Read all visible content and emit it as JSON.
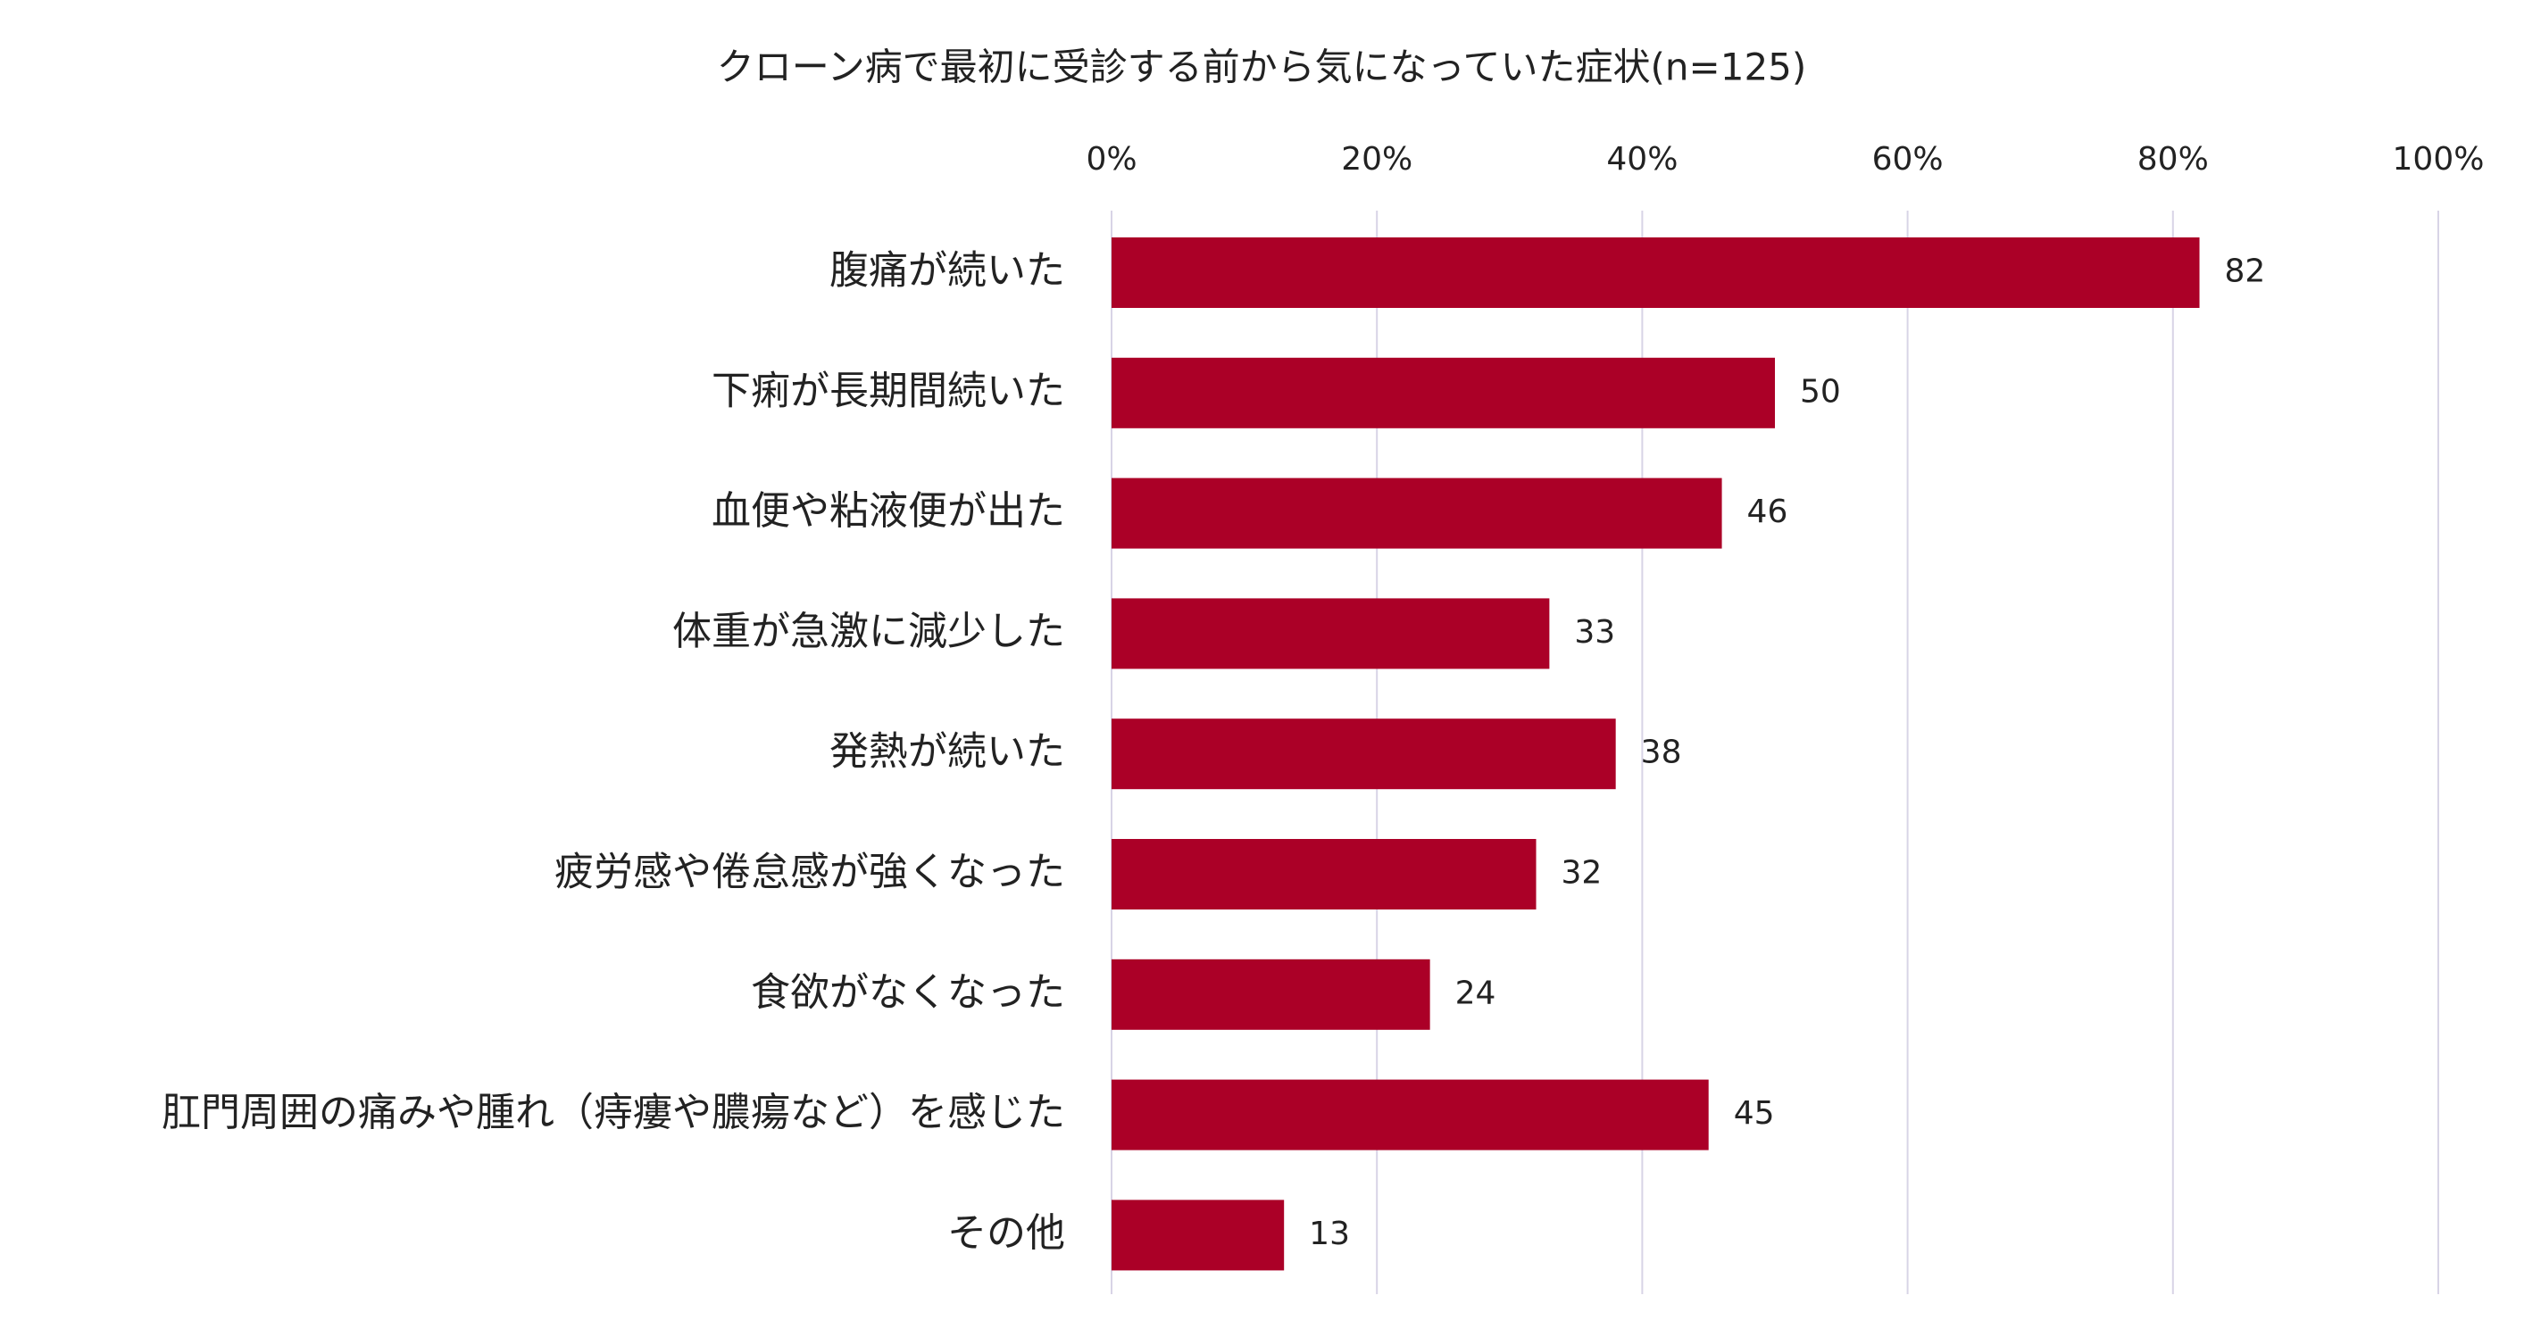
{
  "chart_data": {
    "type": "bar",
    "orientation": "horizontal",
    "title": "クローン病で最初に受診する前から気になっていた症状(n=125)",
    "categories": [
      "腹痛が続いた",
      "下痢が長期間続いた",
      "血便や粘液便が出た",
      "体重が急激に減少した",
      "発熱が続いた",
      "疲労感や倦怠感が強くなった",
      "食欲がなくなった",
      "肛門周囲の痛みや腫れ（痔瘻や膿瘍など）を感じた",
      "その他"
    ],
    "values": [
      82,
      50,
      46,
      33,
      38,
      32,
      24,
      45,
      13
    ],
    "color": "#ab0027",
    "xlim": [
      0,
      100
    ],
    "xticks": [
      {
        "value": 0,
        "label": "0%"
      },
      {
        "value": 20,
        "label": "20%"
      },
      {
        "value": 40,
        "label": "40%"
      },
      {
        "value": 60,
        "label": "60%"
      },
      {
        "value": 80,
        "label": "80%"
      },
      {
        "value": 100,
        "label": "100%"
      }
    ],
    "grid": true
  }
}
